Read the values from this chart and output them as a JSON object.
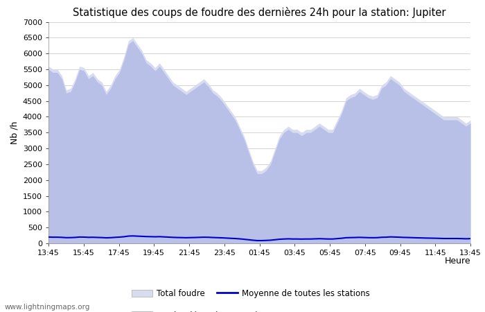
{
  "title": "Statistique des coups de foudre des dernières 24h pour la station: Jupiter",
  "xlabel": "Heure",
  "ylabel": "Nb /h",
  "ylim": [
    0,
    7000
  ],
  "yticks": [
    0,
    500,
    1000,
    1500,
    2000,
    2500,
    3000,
    3500,
    4000,
    4500,
    5000,
    5500,
    6000,
    6500,
    7000
  ],
  "xtick_labels": [
    "13:45",
    "15:45",
    "17:45",
    "19:45",
    "21:45",
    "23:45",
    "01:45",
    "03:45",
    "05:45",
    "07:45",
    "09:45",
    "11:45",
    "13:45"
  ],
  "watermark": "www.lightningmaps.org",
  "total_foudre_color": "#d8dcf0",
  "jupiter_color": "#b8c0e8",
  "mean_line_color": "#0000cc",
  "background_color": "#ffffff",
  "grid_color": "#cccccc",
  "x": [
    0,
    1,
    2,
    3,
    4,
    5,
    6,
    7,
    8,
    9,
    10,
    11,
    12,
    13,
    14,
    15,
    16,
    17,
    18,
    19,
    20,
    21,
    22,
    23,
    24,
    25,
    26,
    27,
    28,
    29,
    30,
    31,
    32,
    33,
    34,
    35,
    36,
    37,
    38,
    39,
    40,
    41,
    42,
    43,
    44,
    45,
    46,
    47,
    48,
    49,
    50,
    51,
    52,
    53,
    54,
    55,
    56,
    57,
    58,
    59,
    60,
    61,
    62,
    63,
    64,
    65,
    66,
    67,
    68,
    69,
    70,
    71,
    72,
    73,
    74,
    75,
    76,
    77,
    78,
    79,
    80,
    81,
    82,
    83,
    84,
    85,
    86,
    87,
    88,
    89,
    90,
    91,
    92,
    93,
    94,
    95
  ],
  "total_foudre": [
    5600,
    5500,
    5500,
    5300,
    4850,
    4900,
    5200,
    5600,
    5550,
    5300,
    5400,
    5200,
    5100,
    4800,
    5000,
    5300,
    5500,
    5900,
    6400,
    6500,
    6300,
    6100,
    5800,
    5700,
    5550,
    5700,
    5500,
    5300,
    5100,
    5000,
    4900,
    4800,
    4900,
    5000,
    5100,
    5200,
    5050,
    4850,
    4750,
    4600,
    4400,
    4200,
    4000,
    3700,
    3400,
    3000,
    2600,
    2300,
    2300,
    2400,
    2600,
    3000,
    3400,
    3600,
    3700,
    3600,
    3600,
    3500,
    3600,
    3600,
    3700,
    3800,
    3700,
    3600,
    3600,
    3900,
    4200,
    4600,
    4700,
    4750,
    4900,
    4800,
    4700,
    4650,
    4700,
    5000,
    5100,
    5300,
    5200,
    5100,
    4900,
    4800,
    4700,
    4600,
    4500,
    4400,
    4300,
    4200,
    4100,
    4000,
    4000,
    4000,
    4000,
    3900,
    3800,
    3900
  ],
  "jupiter_foudre": [
    5500,
    5400,
    5400,
    5200,
    4750,
    4800,
    5100,
    5500,
    5450,
    5200,
    5300,
    5100,
    5000,
    4700,
    4900,
    5200,
    5400,
    5800,
    6300,
    6400,
    6200,
    6000,
    5700,
    5600,
    5450,
    5600,
    5400,
    5200,
    5000,
    4900,
    4800,
    4700,
    4800,
    4900,
    5000,
    5100,
    4950,
    4750,
    4650,
    4500,
    4300,
    4100,
    3900,
    3600,
    3300,
    2900,
    2500,
    2200,
    2200,
    2300,
    2500,
    2900,
    3300,
    3500,
    3600,
    3500,
    3500,
    3400,
    3500,
    3500,
    3600,
    3700,
    3600,
    3500,
    3500,
    3800,
    4100,
    4500,
    4600,
    4650,
    4800,
    4700,
    4600,
    4550,
    4600,
    4900,
    5000,
    5200,
    5100,
    5000,
    4800,
    4700,
    4600,
    4500,
    4400,
    4300,
    4200,
    4100,
    4000,
    3900,
    3900,
    3900,
    3900,
    3800,
    3700,
    3800
  ],
  "mean_line": [
    200,
    195,
    195,
    190,
    180,
    182,
    188,
    200,
    198,
    190,
    193,
    187,
    183,
    175,
    180,
    190,
    198,
    210,
    230,
    235,
    228,
    222,
    215,
    212,
    208,
    212,
    205,
    197,
    190,
    185,
    182,
    178,
    182,
    185,
    190,
    195,
    192,
    185,
    180,
    175,
    168,
    160,
    153,
    143,
    130,
    115,
    100,
    88,
    88,
    93,
    100,
    115,
    130,
    138,
    143,
    138,
    138,
    135,
    138,
    138,
    143,
    148,
    143,
    138,
    138,
    150,
    162,
    178,
    182,
    185,
    190,
    185,
    180,
    178,
    180,
    192,
    195,
    205,
    200,
    195,
    188,
    185,
    180,
    175,
    172,
    168,
    165,
    162,
    158,
    153,
    153,
    153,
    153,
    150,
    145,
    150
  ]
}
